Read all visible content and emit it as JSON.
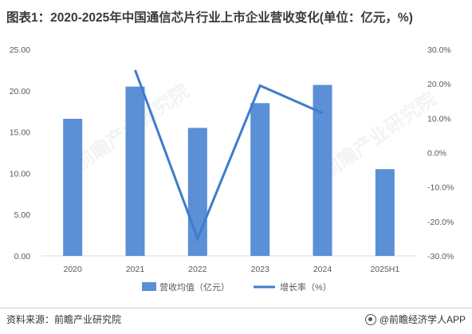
{
  "title": "图表1：2020-2025年中国通信芯片行业上市企业营收变化(单位：亿元，%)",
  "source": "资料来源：前瞻产业研究院",
  "brand": "@前瞻经济学人APP",
  "watermark": "前瞻产业研究院",
  "colors": {
    "bar": "#5b8fd6",
    "line": "#3d7ccc",
    "axis": "#d9d9d9",
    "tick": "#595959"
  },
  "chart_data": {
    "type": "bar",
    "categories": [
      "2020",
      "2021",
      "2022",
      "2023",
      "2024",
      "2025H1"
    ],
    "series": [
      {
        "name": "营收均值（亿元）",
        "type": "bar",
        "axis": "left",
        "values": [
          16.6,
          20.5,
          15.5,
          18.5,
          20.7,
          10.5
        ]
      },
      {
        "name": "增长率（%）",
        "type": "line",
        "axis": "right",
        "values": [
          null,
          24.0,
          -25.0,
          19.5,
          11.5,
          null
        ]
      }
    ],
    "y_left": {
      "ylim": [
        0,
        25
      ],
      "ticks": [
        "0.00",
        "5.00",
        "10.00",
        "15.00",
        "20.00",
        "25.00"
      ]
    },
    "y_right": {
      "ylim": [
        -30,
        30
      ],
      "ticks": [
        "-30.0%",
        "-20.0%",
        "-10.0%",
        "0.0%",
        "10.0%",
        "20.0%",
        "30.0%"
      ]
    },
    "legend": {
      "position": "bottom",
      "items": [
        "营收均值（亿元）",
        "增长率（%）"
      ]
    },
    "grid": false
  }
}
